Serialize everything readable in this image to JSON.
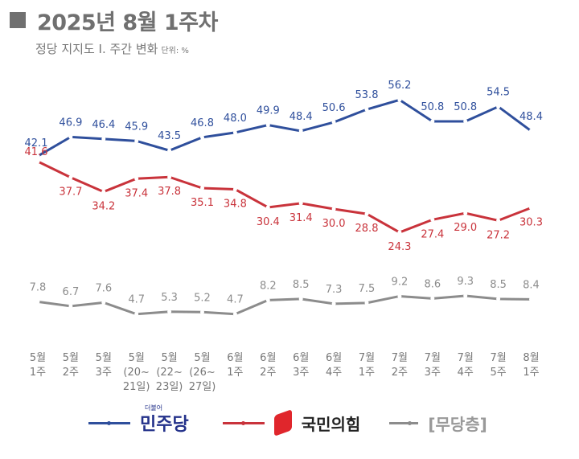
{
  "title": "2025년 8월 1주차",
  "subtitle": "정당 지지도 Ⅰ. 주간 변화",
  "unit": "단위: %",
  "colors": {
    "blue": "#2f4f9c",
    "red": "#c9333b",
    "gray": "#8c8c8c"
  },
  "chart_data": {
    "type": "line",
    "categories": [
      [
        "5월",
        "1주"
      ],
      [
        "5월",
        "2주"
      ],
      [
        "5월",
        "3주"
      ],
      [
        "5월",
        "(20~",
        "21일)"
      ],
      [
        "5월",
        "(22~",
        "23일)"
      ],
      [
        "5월",
        "(26~",
        "27일)"
      ],
      [
        "6월",
        "1주"
      ],
      [
        "6월",
        "2주"
      ],
      [
        "6월",
        "3주"
      ],
      [
        "6월",
        "4주"
      ],
      [
        "7월",
        "1주"
      ],
      [
        "7월",
        "2주"
      ],
      [
        "7월",
        "3주"
      ],
      [
        "7월",
        "4주"
      ],
      [
        "7월",
        "5주"
      ],
      [
        "8월",
        "1주"
      ]
    ],
    "series": [
      {
        "name": "민주당",
        "color": "#2f4f9c",
        "values": [
          42.1,
          46.9,
          46.4,
          45.9,
          43.5,
          46.8,
          48.0,
          49.9,
          48.4,
          50.6,
          53.8,
          56.2,
          50.8,
          50.8,
          54.5,
          48.4
        ],
        "labels": [
          "42.1",
          "46.9",
          "46.4",
          "45.9",
          "43.5",
          "46.8",
          "48.0",
          "49.9",
          "48.4",
          "50.6",
          "53.8",
          "56.2",
          "50.8",
          "50.8",
          "54.5",
          "48.4"
        ]
      },
      {
        "name": "국민의힘",
        "color": "#c9333b",
        "values": [
          41.6,
          37.7,
          34.2,
          37.4,
          37.8,
          35.1,
          34.8,
          30.4,
          31.4,
          30.0,
          28.8,
          24.3,
          27.4,
          29.0,
          27.2,
          30.3
        ],
        "labels": [
          "41.6",
          "37.7",
          "34.2",
          "37.4",
          "37.8",
          "35.1",
          "34.8",
          "30.4",
          "31.4",
          "30.0",
          "28.8",
          "24.3",
          "27.4",
          "29.0",
          "27.2",
          "30.3"
        ]
      },
      {
        "name": "[무당층]",
        "color": "#8c8c8c",
        "values": [
          7.8,
          6.7,
          7.6,
          4.7,
          5.3,
          5.2,
          4.7,
          8.2,
          8.5,
          7.3,
          7.5,
          9.2,
          8.6,
          9.3,
          8.5,
          8.4
        ],
        "labels": [
          "7.8",
          "6.7",
          "7.6",
          "4.7",
          "5.3",
          "5.2",
          "4.7",
          "8.2",
          "8.5",
          "7.3",
          "7.5",
          "9.2",
          "8.6",
          "9.3",
          "8.5",
          "8.4"
        ]
      }
    ],
    "grid": false,
    "legend": "bottom"
  },
  "legend": {
    "dem_logo_small": "더불어",
    "dem": "민주당",
    "ppp": "국민의힘",
    "none": "[무당층]"
  }
}
